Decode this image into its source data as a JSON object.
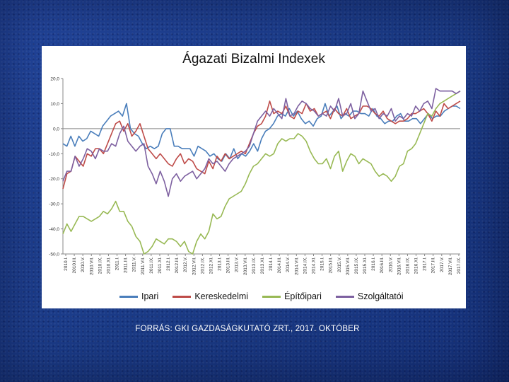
{
  "chart_data": {
    "type": "line",
    "title": "Ágazati Bizalmi Indexek",
    "xlabel": "",
    "ylabel": "",
    "ylim": [
      -50,
      20
    ],
    "yticks": [
      "20,0",
      "10,0",
      "0,0",
      "-10,0",
      "-20,0",
      "-30,0",
      "-40,0",
      "-50,0"
    ],
    "ytick_values": [
      20,
      10,
      0,
      -10,
      -20,
      -30,
      -40,
      -50
    ],
    "grid": false,
    "legend_position": "bottom",
    "x_tick_labels": [
      "2010.I.",
      "2010.III.",
      "2010.V.",
      "2010.VII.",
      "2010.IX.",
      "2010.XI.",
      "2011.I.",
      "2011.III.",
      "2011.V.",
      "2011.VII.",
      "2011.IX.",
      "2011.XI.",
      "2012.I.",
      "2012.III.",
      "2012.V.",
      "2012.VII.",
      "2012.IX.",
      "2012.XI.",
      "2013.I.",
      "2013.III.",
      "2013.V.",
      "2013.VII.",
      "2013.IX.",
      "2013.XI.",
      "2014.I.",
      "2014.III.",
      "2014.V.",
      "2014.VII.",
      "2014.IX.",
      "2014.XI.",
      "2015.I.",
      "2015.III.",
      "2015.V.",
      "2015.VII.",
      "2015.IX.",
      "2015.XI.",
      "2016.I.",
      "2016.III.",
      "2016.V.",
      "2016.VII.",
      "2016.IX.",
      "2016.XI.",
      "2017.I.",
      "2017.III.",
      "2017.V.",
      "2017.VII.",
      "2017.IX."
    ],
    "series": [
      {
        "name": "Ipari",
        "color": "#4a7ebb",
        "values": [
          -6,
          -7,
          -3,
          -7,
          -3,
          -5,
          -4,
          -1,
          -2,
          -3,
          1,
          3,
          5,
          6,
          7,
          5,
          10,
          0,
          -2,
          -3,
          -6,
          -8,
          -7,
          -8,
          -7,
          -2,
          0,
          0,
          -7,
          -7,
          -8,
          -8,
          -8,
          -11,
          -7,
          -8,
          -9,
          -11,
          -10,
          -12,
          -13,
          -10,
          -12,
          -8,
          -12,
          -10,
          -11,
          -9,
          -6,
          -9,
          -4,
          -1,
          0,
          2,
          5,
          6,
          5,
          8,
          5,
          7,
          4,
          2,
          3,
          1,
          4,
          5,
          10,
          5,
          7,
          9,
          4,
          6,
          5,
          7,
          7,
          6,
          6,
          5,
          8,
          5,
          4,
          2,
          3,
          3,
          5,
          6,
          3,
          3,
          4,
          4,
          2,
          4,
          6,
          4,
          5,
          5,
          7,
          8,
          9,
          9,
          8
        ]
      },
      {
        "name": "Kereskedelmi",
        "color": "#be4b48",
        "values": [
          -24,
          -18,
          -17,
          -11,
          -13,
          -15,
          -10,
          -11,
          -8,
          -8,
          -10,
          -6,
          -2,
          2,
          3,
          -1,
          2,
          -3,
          -1,
          2,
          -3,
          -8,
          -10,
          -12,
          -10,
          -12,
          -14,
          -15,
          -12,
          -10,
          -14,
          -12,
          -13,
          -16,
          -17,
          -18,
          -13,
          -16,
          -11,
          -13,
          -10,
          -12,
          -11,
          -10,
          -9,
          -10,
          -6,
          -2,
          1,
          2,
          5,
          11,
          6,
          7,
          6,
          9,
          5,
          4,
          7,
          6,
          10,
          7,
          8,
          5,
          6,
          7,
          4,
          8,
          6,
          5,
          8,
          4,
          5,
          6,
          9,
          9,
          8,
          6,
          5,
          7,
          4,
          3,
          2,
          3,
          3,
          4,
          6,
          6,
          7,
          8,
          6,
          3,
          7,
          5,
          10,
          8,
          9,
          10,
          11
        ]
      },
      {
        "name": "Építőipari",
        "color": "#98b954",
        "values": [
          -42,
          -38,
          -41,
          -38,
          -35,
          -35,
          -36,
          -37,
          -36,
          -35,
          -33,
          -34,
          -32,
          -29,
          -33,
          -33,
          -37,
          -39,
          -43,
          -45,
          -50,
          -49,
          -47,
          -44,
          -45,
          -46,
          -44,
          -44,
          -45,
          -47,
          -45,
          -49,
          -50,
          -45,
          -42,
          -44,
          -41,
          -34,
          -36,
          -35,
          -31,
          -28,
          -27,
          -26,
          -25,
          -22,
          -18,
          -15,
          -14,
          -12,
          -10,
          -11,
          -10,
          -6,
          -4,
          -5,
          -4,
          -4,
          -2,
          -3,
          -5,
          -9,
          -12,
          -14,
          -14,
          -12,
          -16,
          -11,
          -9,
          -17,
          -13,
          -10,
          -11,
          -14,
          -12,
          -13,
          -14,
          -17,
          -19,
          -18,
          -19,
          -21,
          -19,
          -15,
          -14,
          -9,
          -8,
          -6,
          -2,
          2,
          6,
          5,
          8,
          10,
          11,
          12,
          13,
          14,
          15
        ]
      },
      {
        "name": "Szolgáltatói",
        "color": "#7d60a0",
        "values": [
          -21,
          -17,
          -17,
          -11,
          -15,
          -12,
          -8,
          -9,
          -12,
          -8,
          -9,
          -9,
          -6,
          -7,
          -2,
          1,
          -5,
          -7,
          -9,
          -7,
          -6,
          -15,
          -18,
          -22,
          -17,
          -21,
          -27,
          -20,
          -18,
          -21,
          -19,
          -18,
          -17,
          -20,
          -18,
          -16,
          -12,
          -14,
          -13,
          -15,
          -17,
          -14,
          -12,
          -11,
          -10,
          -9,
          -7,
          -2,
          3,
          5,
          7,
          5,
          8,
          6,
          4,
          12,
          5,
          6,
          9,
          11,
          10,
          8,
          7,
          5,
          6,
          5,
          9,
          7,
          12,
          5,
          6,
          10,
          4,
          6,
          15,
          11,
          7,
          8,
          4,
          6,
          5,
          8,
          3,
          5,
          4,
          6,
          5,
          9,
          7,
          10,
          11,
          8,
          16,
          15,
          15,
          15,
          15,
          14,
          15
        ]
      }
    ]
  },
  "footer": {
    "source": "FORRÁS: GKI GAZDASÁGKUTATÓ ZRT., 2017. OKTÓBER"
  }
}
